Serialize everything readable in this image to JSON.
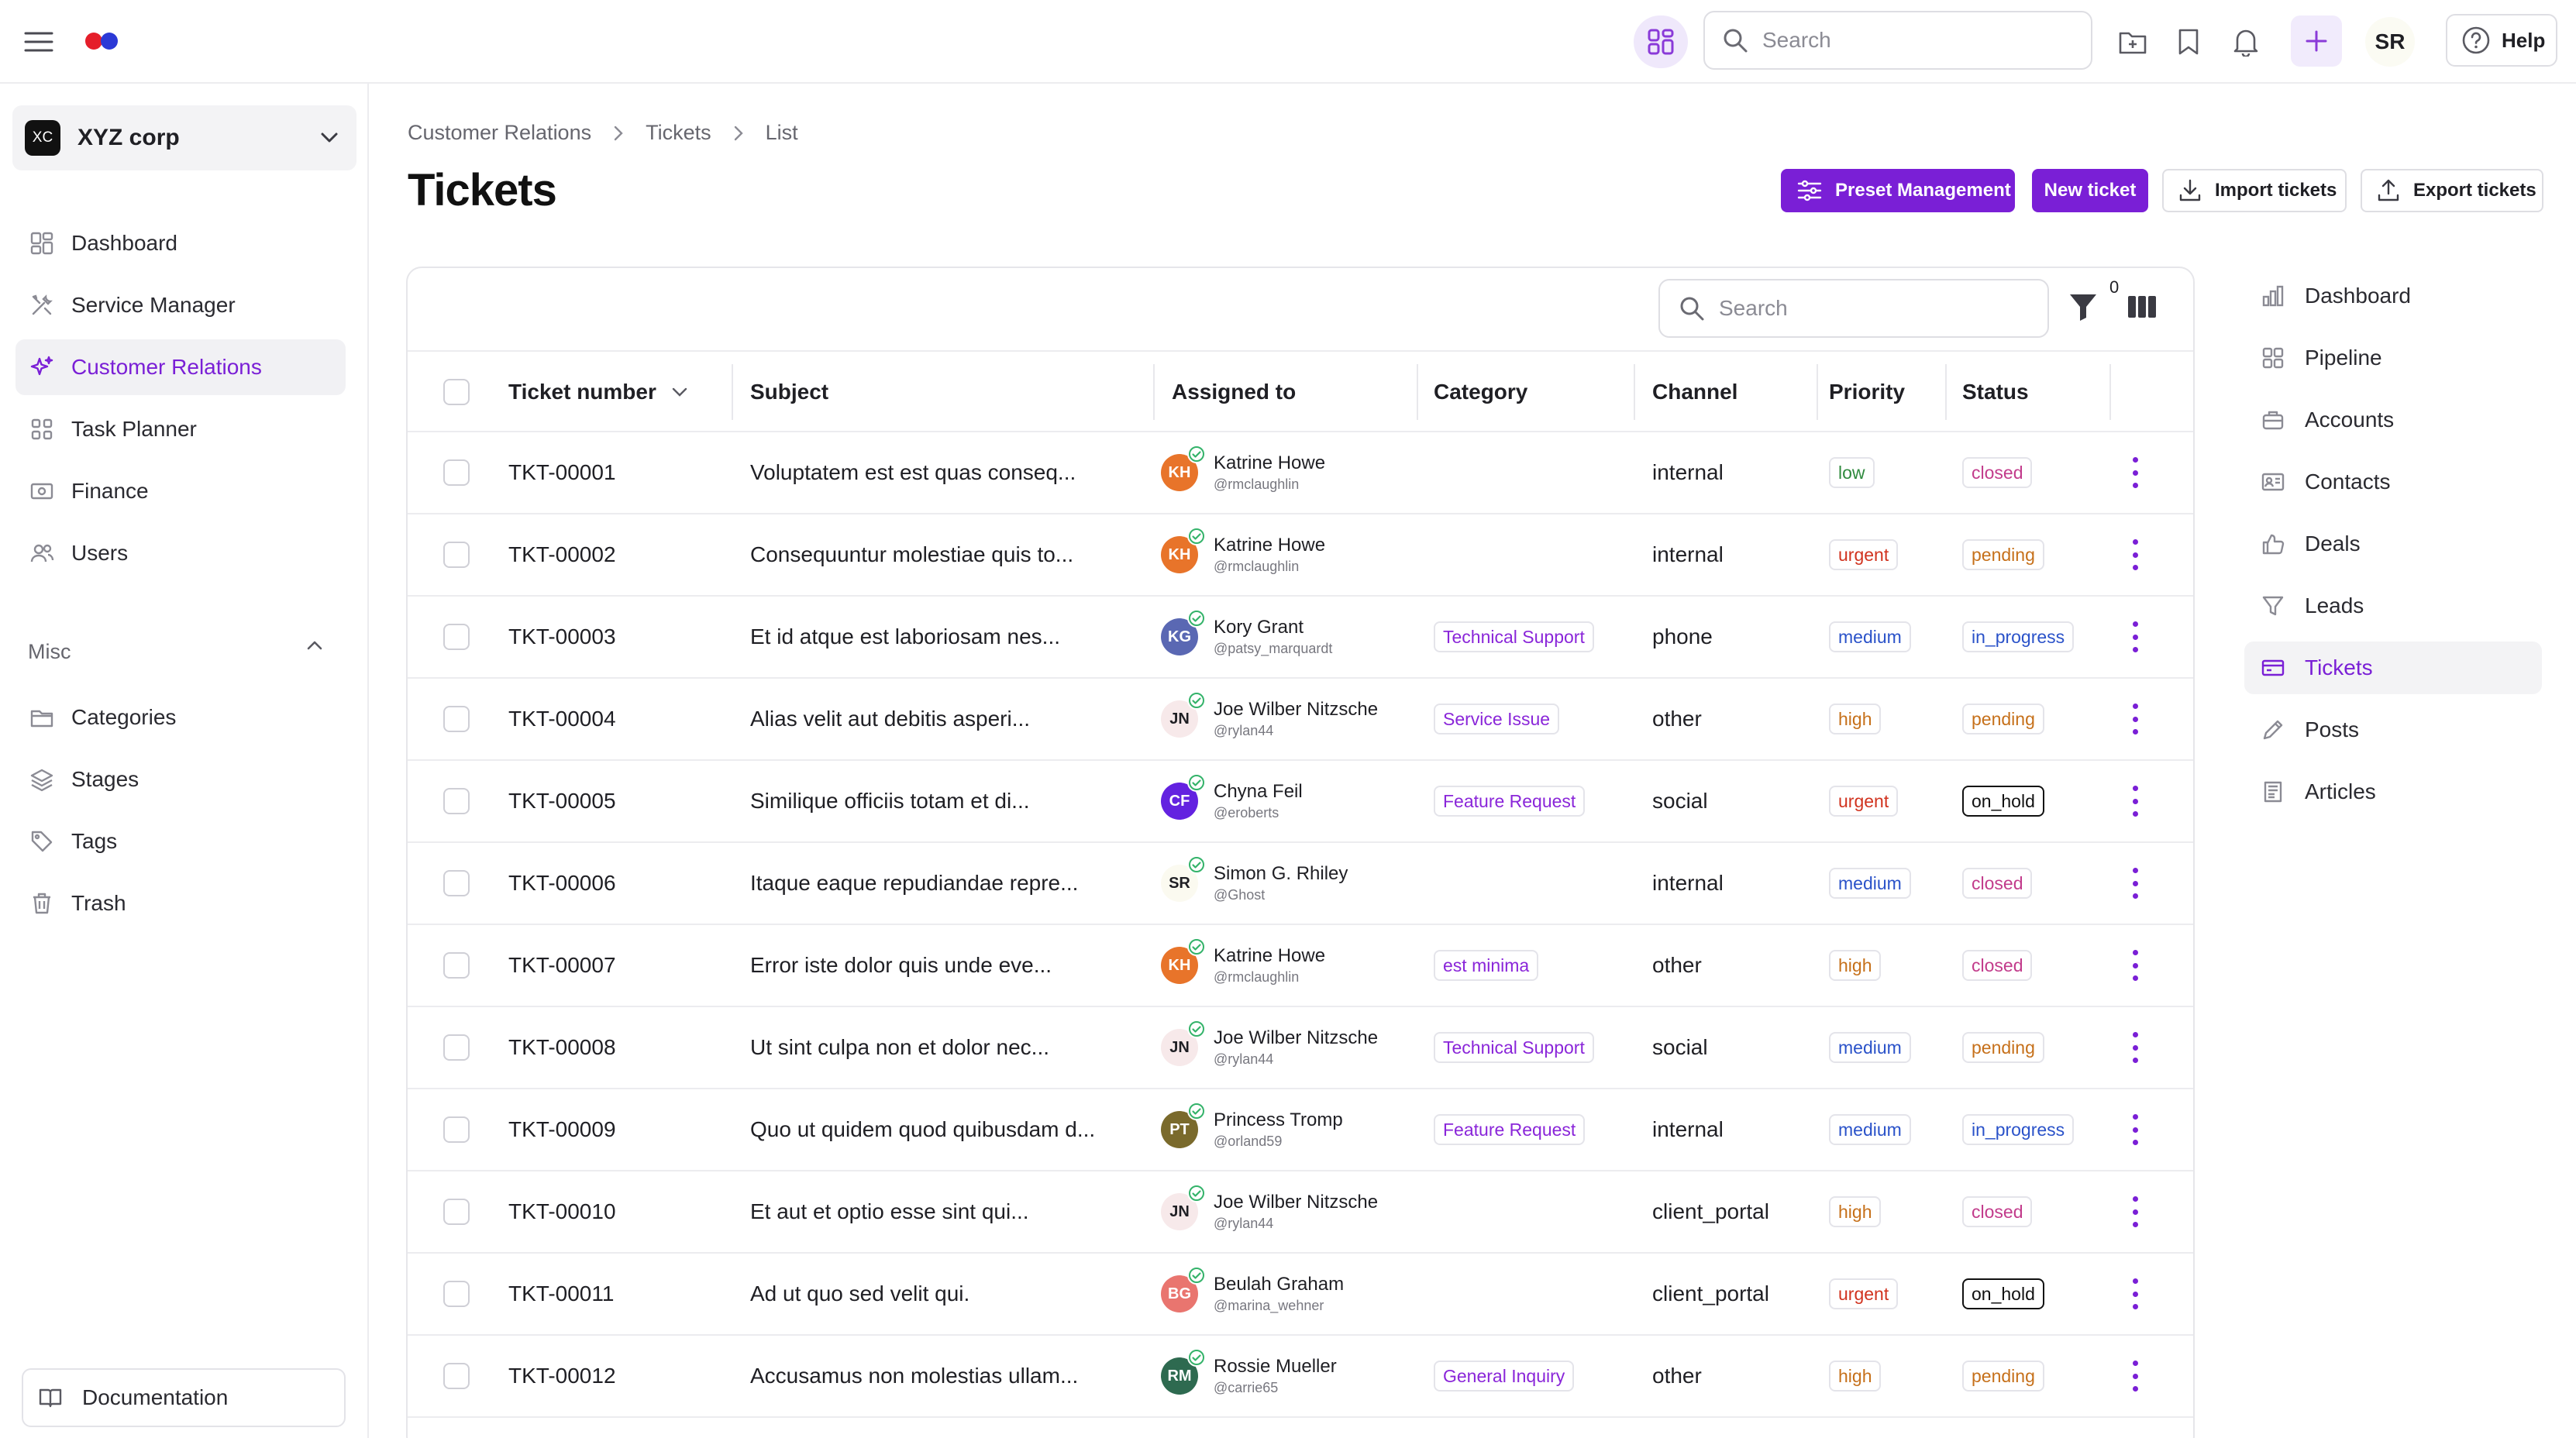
{
  "topbar": {
    "search_placeholder": "Search",
    "avatar_initials": "SR",
    "help_label": "Help"
  },
  "sidebar": {
    "org_badge": "XC",
    "org_name": "XYZ corp",
    "nav": [
      {
        "label": "Dashboard",
        "icon": "dashboard-icon"
      },
      {
        "label": "Service Manager",
        "icon": "tools-icon"
      },
      {
        "label": "Customer Relations",
        "icon": "sparkle-icon",
        "active": true
      },
      {
        "label": "Task Planner",
        "icon": "grid-icon"
      },
      {
        "label": "Finance",
        "icon": "banknote-icon"
      },
      {
        "label": "Users",
        "icon": "users-icon"
      }
    ],
    "misc_heading": "Misc",
    "misc": [
      {
        "label": "Categories",
        "icon": "folder-icon"
      },
      {
        "label": "Stages",
        "icon": "layers-icon"
      },
      {
        "label": "Tags",
        "icon": "tag-icon"
      },
      {
        "label": "Trash",
        "icon": "trash-icon"
      }
    ],
    "documentation_label": "Documentation"
  },
  "breadcrumb": [
    "Customer Relations",
    "Tickets",
    "List"
  ],
  "page_title": "Tickets",
  "actions": {
    "preset": "Preset Management",
    "new_ticket": "New ticket",
    "import": "Import tickets",
    "export": "Export tickets"
  },
  "table": {
    "search_placeholder": "Search",
    "filter_count": "0",
    "columns": [
      "Ticket number",
      "Subject",
      "Assigned to",
      "Category",
      "Channel",
      "Priority",
      "Status"
    ],
    "rows": [
      {
        "number": "TKT-00001",
        "subject": "Voluptatem est est quas conseq...",
        "initials": "KH",
        "avatar_color": "#e8742a",
        "assignee": "Katrine Howe",
        "handle": "@rmclaughlin",
        "category": "",
        "channel": "internal",
        "priority": "low",
        "status": "closed"
      },
      {
        "number": "TKT-00002",
        "subject": "Consequuntur molestiae quis to...",
        "initials": "KH",
        "avatar_color": "#e8742a",
        "assignee": "Katrine Howe",
        "handle": "@rmclaughlin",
        "category": "",
        "channel": "internal",
        "priority": "urgent",
        "status": "pending"
      },
      {
        "number": "TKT-00003",
        "subject": "Et id atque est laboriosam nes...",
        "initials": "KG",
        "avatar_color": "#5a68b3",
        "assignee": "Kory Grant",
        "handle": "@patsy_marquardt",
        "category": "Technical Support",
        "channel": "phone",
        "priority": "medium",
        "status": "in_progress"
      },
      {
        "number": "TKT-00004",
        "subject": "Alias velit aut debitis asperi...",
        "initials": "JN",
        "avatar_color": "#f7e9ea",
        "assignee": "Joe Wilber Nitzsche",
        "handle": "@rylan44",
        "category": "Service Issue",
        "channel": "other",
        "priority": "high",
        "status": "pending"
      },
      {
        "number": "TKT-00005",
        "subject": "Similique officiis totam et di...",
        "initials": "CF",
        "avatar_color": "#6322e0",
        "assignee": "Chyna Feil",
        "handle": "@eroberts",
        "category": "Feature Request",
        "channel": "social",
        "priority": "urgent",
        "status": "on_hold"
      },
      {
        "number": "TKT-00006",
        "subject": "Itaque eaque repudiandae repre...",
        "initials": "SR",
        "avatar_color": "#fbfaf0",
        "assignee": "Simon G. Rhiley",
        "handle": "@Ghost",
        "category": "",
        "channel": "internal",
        "priority": "medium",
        "status": "closed"
      },
      {
        "number": "TKT-00007",
        "subject": "Error iste dolor quis unde eve...",
        "initials": "KH",
        "avatar_color": "#e8742a",
        "assignee": "Katrine Howe",
        "handle": "@rmclaughlin",
        "category": "est minima",
        "channel": "other",
        "priority": "high",
        "status": "closed"
      },
      {
        "number": "TKT-00008",
        "subject": "Ut sint culpa non et dolor nec...",
        "initials": "JN",
        "avatar_color": "#f7e9ea",
        "assignee": "Joe Wilber Nitzsche",
        "handle": "@rylan44",
        "category": "Technical Support",
        "channel": "social",
        "priority": "medium",
        "status": "pending"
      },
      {
        "number": "TKT-00009",
        "subject": "Quo ut quidem quod quibusdam d...",
        "initials": "PT",
        "avatar_color": "#7a6a2c",
        "assignee": "Princess Tromp",
        "handle": "@orland59",
        "category": "Feature Request",
        "channel": "internal",
        "priority": "medium",
        "status": "in_progress"
      },
      {
        "number": "TKT-00010",
        "subject": "Et aut et optio esse sint qui...",
        "initials": "JN",
        "avatar_color": "#f7e9ea",
        "assignee": "Joe Wilber Nitzsche",
        "handle": "@rylan44",
        "category": "",
        "channel": "client_portal",
        "priority": "high",
        "status": "closed"
      },
      {
        "number": "TKT-00011",
        "subject": "Ad ut quo sed velit qui.",
        "initials": "BG",
        "avatar_color": "#e9756f",
        "assignee": "Beulah Graham",
        "handle": "@marina_wehner",
        "category": "",
        "channel": "client_portal",
        "priority": "urgent",
        "status": "on_hold"
      },
      {
        "number": "TKT-00012",
        "subject": "Accusamus non molestias ullam...",
        "initials": "RM",
        "avatar_color": "#2e6a50",
        "assignee": "Rossie Mueller",
        "handle": "@carrie65",
        "category": "General Inquiry",
        "channel": "other",
        "priority": "high",
        "status": "pending"
      }
    ]
  },
  "subnav": [
    {
      "label": "Dashboard",
      "icon": "bar-chart-icon"
    },
    {
      "label": "Pipeline",
      "icon": "grid-icon"
    },
    {
      "label": "Accounts",
      "icon": "briefcase-icon"
    },
    {
      "label": "Contacts",
      "icon": "id-card-icon"
    },
    {
      "label": "Deals",
      "icon": "thumbs-up-icon"
    },
    {
      "label": "Leads",
      "icon": "funnel-icon"
    },
    {
      "label": "Tickets",
      "icon": "ticket-icon",
      "active": true
    },
    {
      "label": "Posts",
      "icon": "pencil-icon"
    },
    {
      "label": "Articles",
      "icon": "newspaper-icon"
    }
  ],
  "colors": {
    "accent": "#7a1fd6",
    "priority": {
      "low": "#2f8a3e",
      "medium": "#2a52c9",
      "high": "#c6701a",
      "urgent": "#d1331f"
    },
    "status": {
      "closed": "#c23b8b",
      "pending": "#c6701a",
      "in_progress": "#2a52c9",
      "on_hold": "#111111"
    }
  }
}
